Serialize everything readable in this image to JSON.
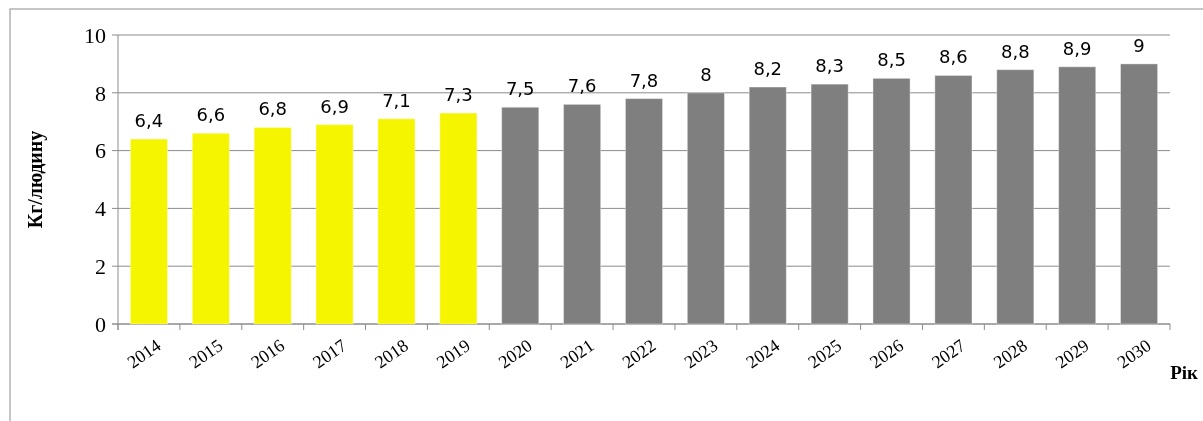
{
  "chart_data": {
    "type": "bar",
    "ylabel": "Кг/людину",
    "xlabel": "Рік",
    "categories": [
      "2014",
      "2015",
      "2016",
      "2017",
      "2018",
      "2019",
      "2020",
      "2021",
      "2022",
      "2023",
      "2024",
      "2025",
      "2026",
      "2027",
      "2028",
      "2029",
      "2030"
    ],
    "values": [
      6.4,
      6.6,
      6.8,
      6.9,
      7.1,
      7.3,
      7.5,
      7.6,
      7.8,
      8,
      8.2,
      8.3,
      8.5,
      8.6,
      8.8,
      8.9,
      9
    ],
    "colors": [
      "#f5f500",
      "#f5f500",
      "#f5f500",
      "#f5f500",
      "#f5f500",
      "#f5f500",
      "#7f7f7f",
      "#7f7f7f",
      "#7f7f7f",
      "#7f7f7f",
      "#7f7f7f",
      "#7f7f7f",
      "#7f7f7f",
      "#7f7f7f",
      "#7f7f7f",
      "#7f7f7f",
      "#7f7f7f"
    ],
    "value_labels": [
      "6,4",
      "6,6",
      "6,8",
      "6,9",
      "7,1",
      "7,3",
      "7,5",
      "7,6",
      "7,8",
      "8",
      "8,2",
      "8,3",
      "8,5",
      "8,6",
      "8,8",
      "8,9",
      "9"
    ],
    "ylim": [
      0,
      10
    ],
    "yticks": [
      0,
      2,
      4,
      6,
      8,
      10
    ],
    "grid": "y"
  }
}
